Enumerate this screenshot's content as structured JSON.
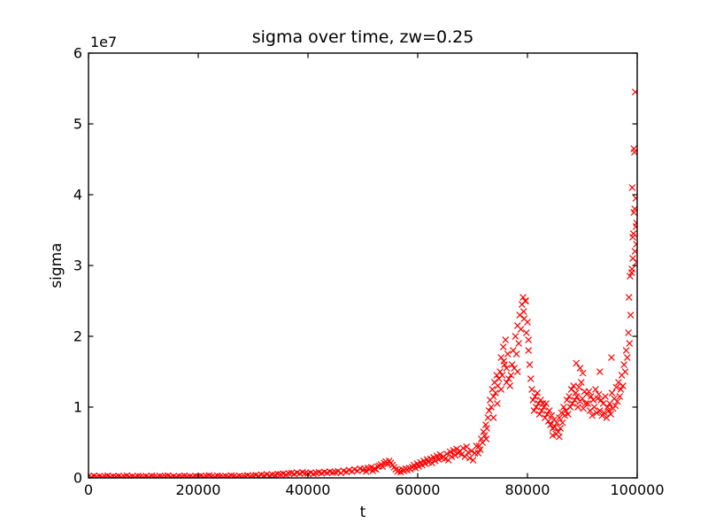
{
  "figure": {
    "title": "sigma over time, zw=0.25",
    "xlabel": "t",
    "ylabel": "sigma",
    "offset_text": "1e7",
    "background_color": "#ffffff",
    "frame_color": "#000000"
  },
  "chart_data": {
    "type": "scatter",
    "title": "sigma over time, zw=0.25",
    "xlabel": "t",
    "ylabel": "sigma",
    "marker": "x",
    "marker_color": "#ff0000",
    "grid": false,
    "legend": null,
    "xlim": [
      0,
      100000
    ],
    "ylim": [
      0,
      6
    ],
    "y_unit_multiplier": 10000000,
    "y_offset_label": "1e7",
    "xticks": [
      {
        "value": 0,
        "label": "0"
      },
      {
        "value": 20000,
        "label": "20000"
      },
      {
        "value": 40000,
        "label": "40000"
      },
      {
        "value": 60000,
        "label": "60000"
      },
      {
        "value": 80000,
        "label": "80000"
      },
      {
        "value": 100000,
        "label": "100000"
      }
    ],
    "yticks": [
      {
        "value": 0,
        "label": "0"
      },
      {
        "value": 1,
        "label": "1"
      },
      {
        "value": 2,
        "label": "2"
      },
      {
        "value": 3,
        "label": "3"
      },
      {
        "value": 4,
        "label": "4"
      },
      {
        "value": 5,
        "label": "5"
      },
      {
        "value": 6,
        "label": "6"
      }
    ],
    "series_segments": [
      {
        "t0": 0,
        "dt": 500,
        "values": [
          0.02,
          0.01,
          0.03,
          0.015,
          0.025,
          0.01,
          0.02,
          0.03,
          0.012,
          0.022,
          0.018,
          0.028,
          0.01,
          0.02,
          0.032,
          0.015,
          0.024,
          0.011,
          0.027,
          0.02,
          0.015,
          0.025,
          0.01,
          0.03,
          0.02,
          0.012,
          0.028,
          0.018,
          0.022,
          0.032,
          0.014,
          0.024,
          0.01,
          0.026,
          0.02,
          0.03,
          0.016,
          0.022,
          0.012,
          0.028,
          0.02,
          0.03,
          0.015,
          0.025,
          0.035,
          0.02,
          0.012,
          0.03,
          0.022,
          0.016,
          0.028,
          0.02,
          0.034,
          0.024,
          0.014,
          0.03,
          0.02,
          0.026,
          0.036,
          0.022,
          0.03,
          0.04,
          0.025,
          0.045,
          0.035,
          0.05,
          0.03,
          0.045,
          0.04,
          0.055,
          0.05,
          0.06,
          0.045,
          0.065,
          0.07,
          0.055,
          0.075,
          0.06,
          0.08,
          0.065,
          0.06,
          0.075,
          0.055,
          0.07,
          0.08,
          0.065,
          0.085,
          0.07,
          0.09,
          0.075,
          0.08,
          0.095,
          0.07,
          0.1,
          0.085,
          0.11,
          0.09,
          0.12,
          0.1,
          0.13
        ]
      },
      {
        "t0": 50000,
        "dt": 300,
        "values": [
          0.11,
          0.13,
          0.09,
          0.14,
          0.12,
          0.15,
          0.1,
          0.13,
          0.12,
          0.16,
          0.17,
          0.19,
          0.16,
          0.21,
          0.23,
          0.2,
          0.24,
          0.21,
          0.18,
          0.15,
          0.12,
          0.09,
          0.11,
          0.08,
          0.12,
          0.1,
          0.13,
          0.11,
          0.14,
          0.12,
          0.15,
          0.18,
          0.14,
          0.2,
          0.16,
          0.22,
          0.18,
          0.24,
          0.2,
          0.26,
          0.22,
          0.27,
          0.21,
          0.29,
          0.24,
          0.31,
          0.26,
          0.33,
          0.28,
          0.3,
          0.27,
          0.34,
          0.25,
          0.37,
          0.3,
          0.39,
          0.32,
          0.41,
          0.35,
          0.38,
          0.33,
          0.42,
          0.3,
          0.44,
          0.36,
          0.28,
          0.38,
          0.25,
          0.35,
          0.45
        ]
      },
      {
        "t0": 71000,
        "dt": 200,
        "values": [
          0.35,
          0.45,
          0.4,
          0.55,
          0.5,
          0.65,
          0.6,
          0.75,
          0.7,
          0.85,
          0.95,
          1.1,
          1.0,
          1.25,
          1.15,
          1.35,
          1.2,
          1.45,
          1.3,
          1.4,
          1.5,
          1.7,
          1.45,
          1.85,
          1.6,
          1.95,
          1.55,
          1.75,
          1.4,
          1.3,
          1.45,
          1.6,
          1.8,
          1.55,
          2.0,
          1.75,
          2.15,
          1.9,
          2.3,
          2.1,
          2.45,
          2.55,
          2.25,
          2.5,
          2.05,
          2.2,
          1.8,
          1.6,
          1.4,
          1.25,
          1.1,
          0.95,
          1.15,
          1.0,
          1.2,
          1.05,
          0.9,
          1.1,
          0.95,
          1.05,
          1.0,
          0.85,
          1.05,
          0.9,
          0.8,
          0.95,
          0.75,
          0.88,
          0.7,
          0.82,
          0.72,
          0.62,
          0.78,
          0.65,
          0.85,
          0.7,
          0.92,
          0.78,
          1.0,
          0.88,
          0.95,
          1.1,
          0.9,
          1.15,
          1.0,
          1.25,
          1.05,
          1.3,
          1.1,
          1.2,
          1.15,
          1.0,
          1.28,
          1.08,
          1.35,
          1.12,
          0.98,
          1.22,
          1.05,
          1.18,
          1.05,
          1.22,
          0.95,
          1.15,
          0.88,
          1.1,
          1.0,
          1.25,
          0.92,
          1.12,
          1.18,
          0.95,
          1.1,
          0.88,
          1.05,
          0.92,
          1.15,
          0.85,
          1.0,
          0.95,
          1.05,
          0.9,
          1.2,
          0.98,
          1.12,
          1.02,
          1.28,
          1.08,
          1.35,
          1.15,
          1.25,
          1.45,
          1.3,
          1.6,
          1.5,
          1.8,
          1.7,
          2.05,
          1.9,
          2.3,
          2.9,
          3.4,
          3.75,
          3.2,
          3.55
        ]
      }
    ],
    "extra_points": [
      [
        72500,
        0.55
      ],
      [
        73800,
        0.85
      ],
      [
        74500,
        1.05
      ],
      [
        75200,
        1.25
      ],
      [
        75700,
        1.65
      ],
      [
        76200,
        1.35
      ],
      [
        78200,
        1.5
      ],
      [
        79300,
        2.35
      ],
      [
        79700,
        2.5
      ],
      [
        80200,
        1.95
      ],
      [
        84600,
        0.6
      ],
      [
        85800,
        0.58
      ],
      [
        88900,
        1.62
      ],
      [
        89600,
        1.55
      ],
      [
        90100,
        1.48
      ],
      [
        93200,
        1.5
      ],
      [
        95300,
        1.7
      ],
      [
        98500,
        2.55
      ],
      [
        98700,
        2.85
      ],
      [
        99050,
        2.95
      ],
      [
        99100,
        4.1
      ],
      [
        99200,
        3.1
      ],
      [
        99300,
        3.45
      ],
      [
        99400,
        4.65
      ],
      [
        99500,
        4.6
      ],
      [
        99550,
        3.8
      ],
      [
        99650,
        5.45
      ],
      [
        99750,
        3.95
      ],
      [
        99850,
        3.3
      ],
      [
        99900,
        3.6
      ],
      [
        99950,
        3.05
      ]
    ]
  }
}
